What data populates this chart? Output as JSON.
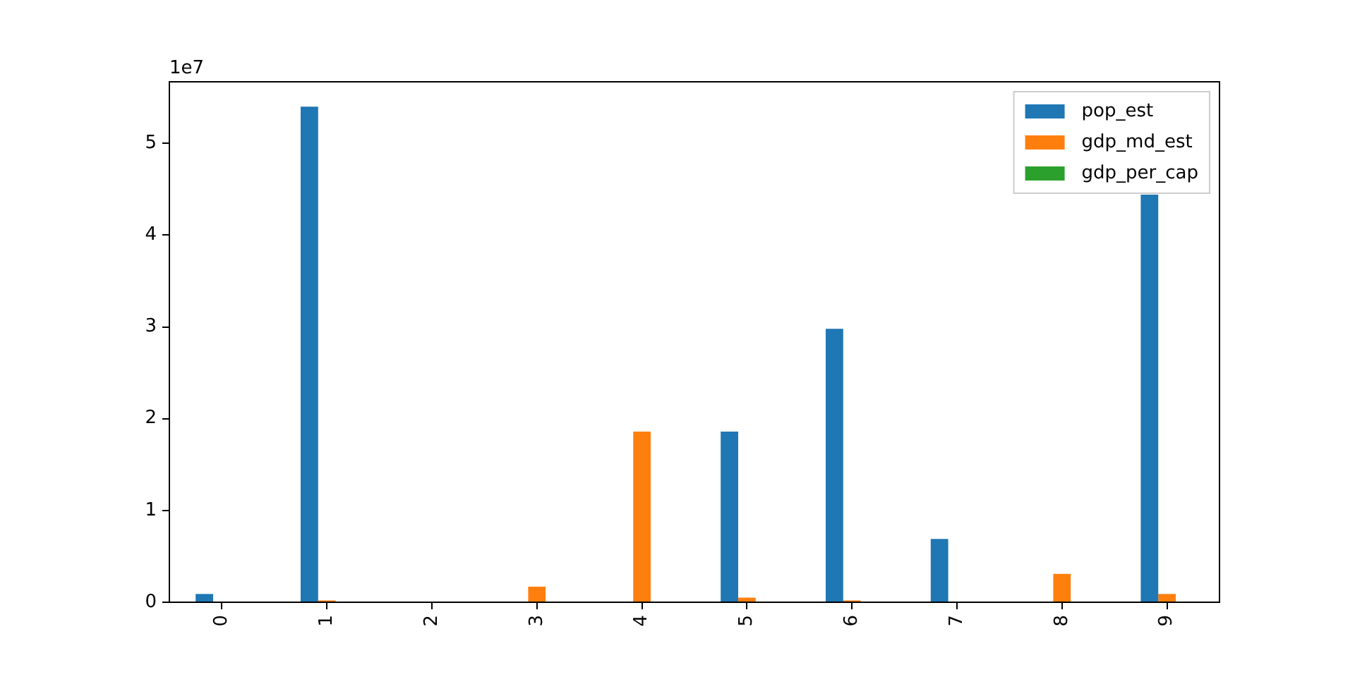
{
  "chart_data": {
    "type": "bar",
    "categories": [
      "0",
      "1",
      "2",
      "3",
      "4",
      "5",
      "6",
      "7",
      "8",
      "9"
    ],
    "series": [
      {
        "name": "pop_est",
        "color": "#1f77b4",
        "values": [
          0.09,
          5.4,
          0,
          0,
          0,
          1.86,
          2.98,
          0.69,
          0,
          4.44
        ]
      },
      {
        "name": "gdp_md_est",
        "color": "#ff7f0e",
        "values": [
          0,
          0.02,
          0,
          0.17,
          1.86,
          0.05,
          0.02,
          0,
          0.31,
          0.09
        ]
      },
      {
        "name": "gdp_per_cap",
        "color": "#2ca02c",
        "values": [
          0,
          0,
          0,
          0,
          0,
          0,
          0,
          0,
          0,
          0
        ]
      }
    ],
    "ylim": [
      0,
      5.67
    ],
    "yticks": [
      0,
      1,
      2,
      3,
      4,
      5
    ],
    "annotations": [
      "1e7"
    ],
    "grid": false,
    "legend": "top right"
  }
}
